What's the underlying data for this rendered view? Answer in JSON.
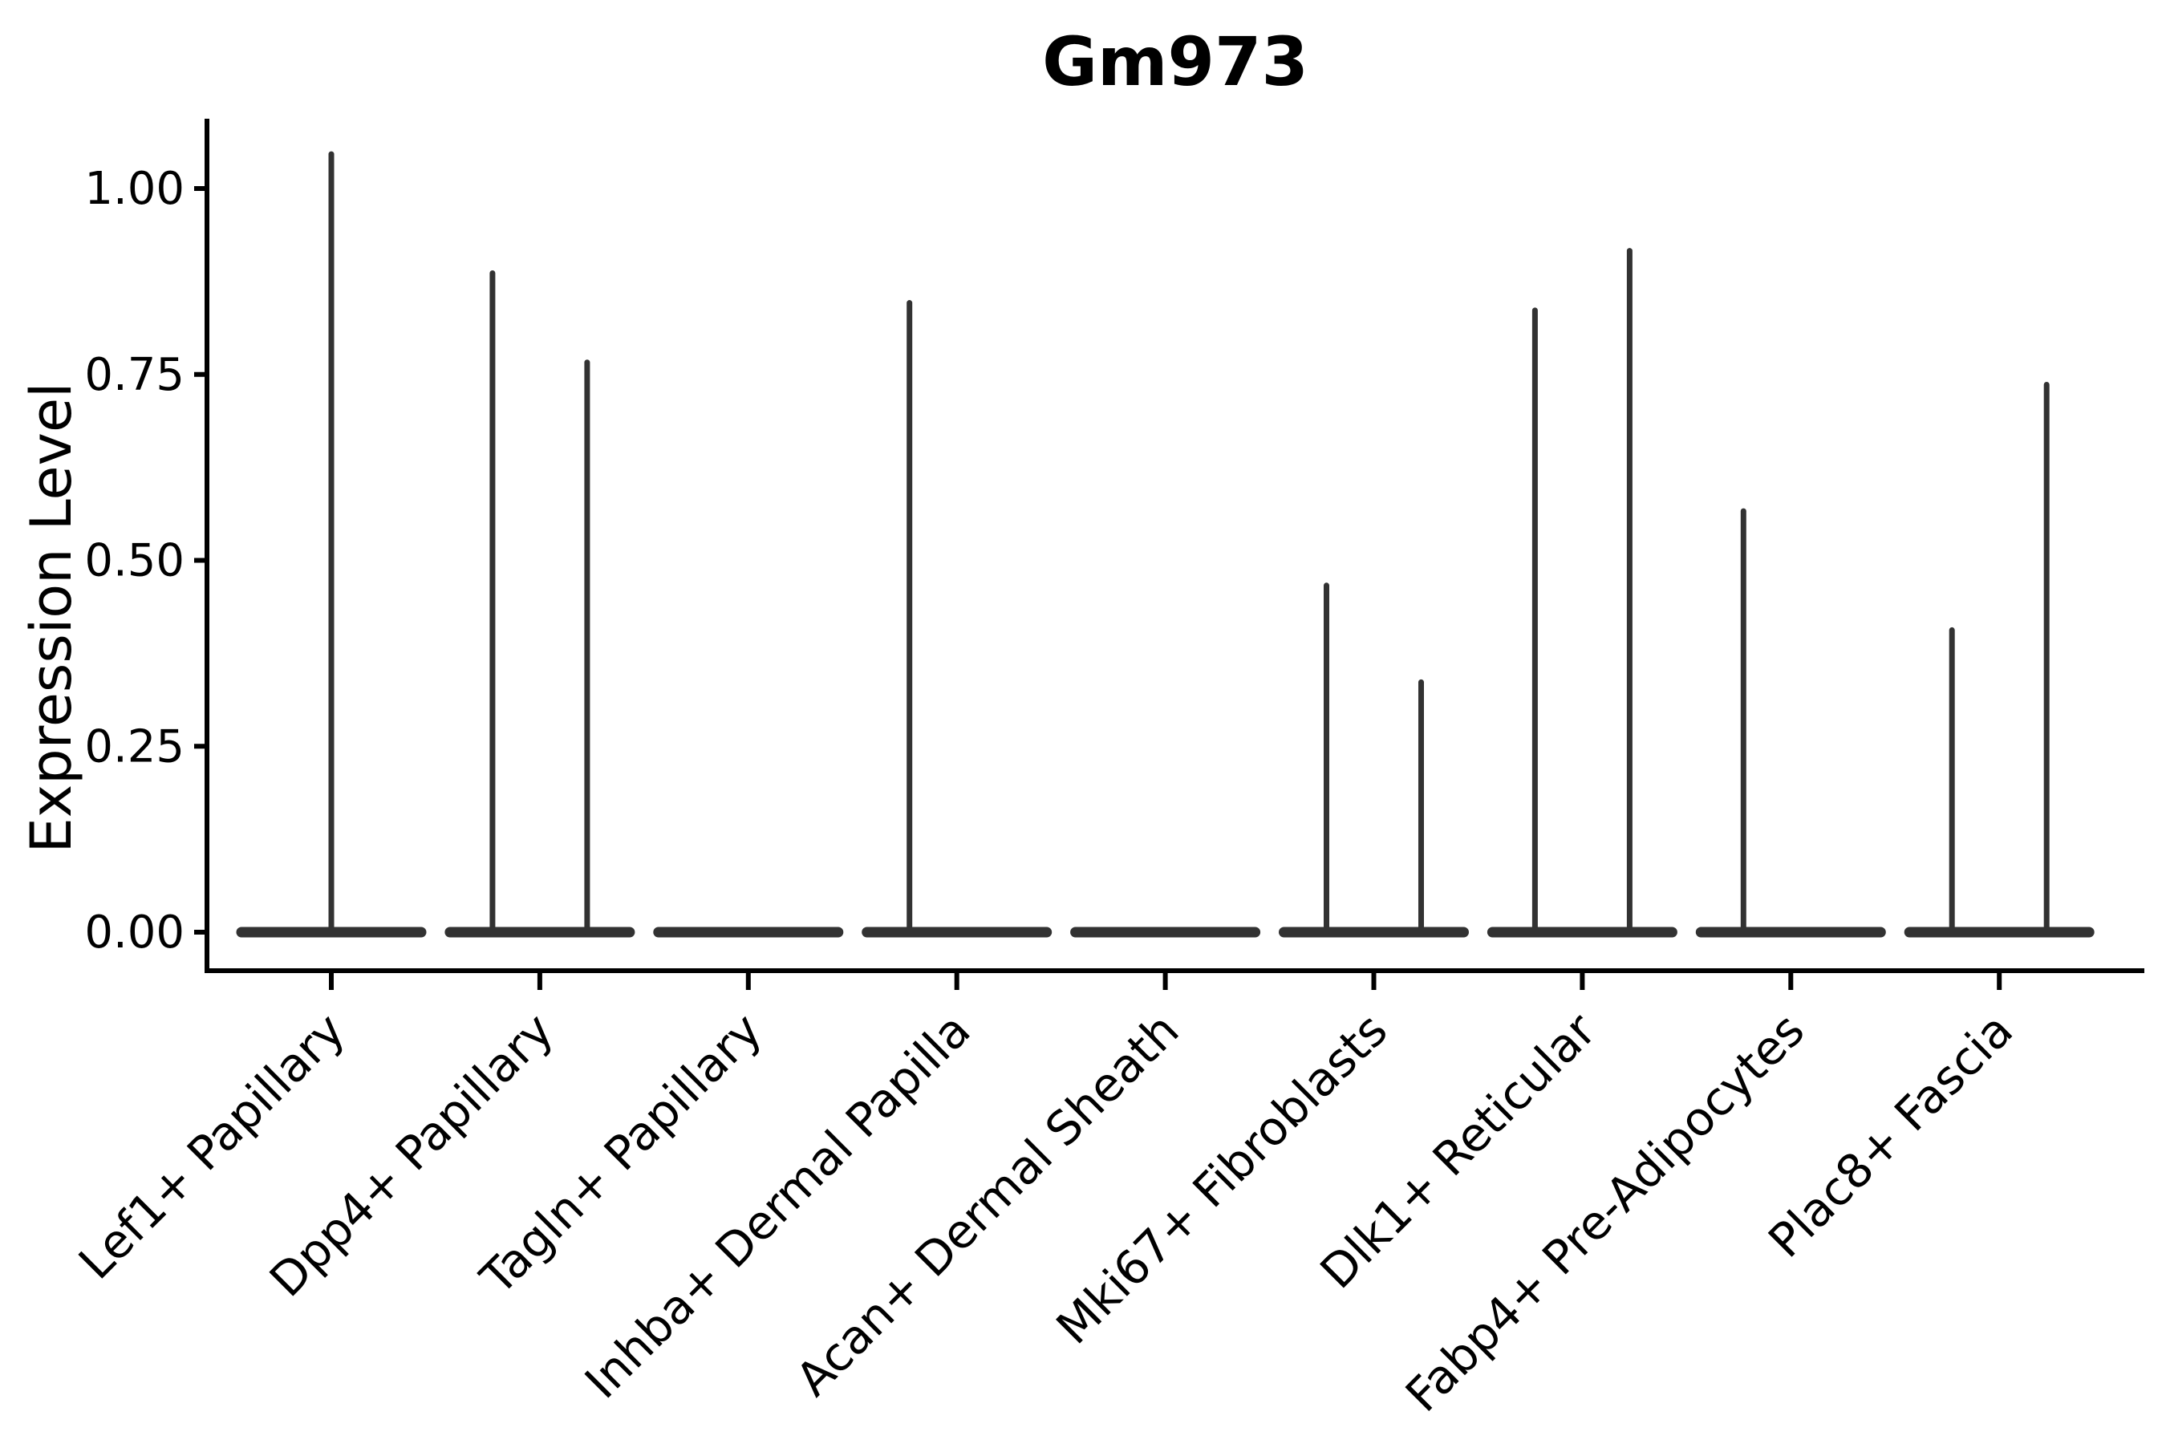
{
  "figure": {
    "title": "Gm973",
    "background": "#ffffff"
  },
  "chart_data": {
    "type": "violin",
    "title": "Gm973",
    "xlabel": "",
    "ylabel": "Expression Level",
    "ylim": [
      0,
      1.09
    ],
    "yticks": [
      0,
      0.25,
      0.5,
      0.75,
      1.0
    ],
    "ytick_labels": [
      "0.00",
      "0.25",
      "0.50",
      "0.75",
      "1.00"
    ],
    "grid": false,
    "legend_position": "none",
    "x_tick_angle_deg": 45,
    "colors": {
      "violin": "#323232",
      "axis": "#000000",
      "text": "#000000",
      "background": "#ffffff"
    },
    "categories": [
      "Lef1+ Papillary",
      "Dpp4+ Papillary",
      "Tagln+ Papillary",
      "Inhba+ Dermal Papilla",
      "Acan+ Dermal Sheath",
      "Mki67+ Fibroblasts",
      "Dlk1+ Reticular",
      "Fabp4+ Pre-Adipocytes",
      "Plac8+ Fascia"
    ],
    "violins": [
      {
        "category": "Lef1+ Papillary",
        "base_value": 0,
        "spikes": [
          {
            "side": "center",
            "max": 1.05
          }
        ]
      },
      {
        "category": "Dpp4+ Papillary",
        "base_value": 0,
        "spikes": [
          {
            "side": "left",
            "max": 0.89
          },
          {
            "side": "right",
            "max": 0.77
          }
        ]
      },
      {
        "category": "Tagln+ Papillary",
        "base_value": 0,
        "spikes": []
      },
      {
        "category": "Inhba+ Dermal Papilla",
        "base_value": 0,
        "spikes": [
          {
            "side": "left",
            "max": 0.85
          }
        ]
      },
      {
        "category": "Acan+ Dermal Sheath",
        "base_value": 0,
        "spikes": []
      },
      {
        "category": "Mki67+ Fibroblasts",
        "base_value": 0,
        "spikes": [
          {
            "side": "left",
            "max": 0.47
          },
          {
            "side": "right",
            "max": 0.34
          }
        ]
      },
      {
        "category": "Dlk1+ Reticular",
        "base_value": 0,
        "spikes": [
          {
            "side": "left",
            "max": 0.84
          },
          {
            "side": "right",
            "max": 0.92
          }
        ]
      },
      {
        "category": "Fabp4+ Pre-Adipocytes",
        "base_value": 0,
        "spikes": [
          {
            "side": "left",
            "max": 0.57
          }
        ]
      },
      {
        "category": "Plac8+ Fascia",
        "base_value": 0,
        "spikes": [
          {
            "side": "left",
            "max": 0.41
          },
          {
            "side": "right",
            "max": 0.74
          }
        ]
      }
    ]
  }
}
